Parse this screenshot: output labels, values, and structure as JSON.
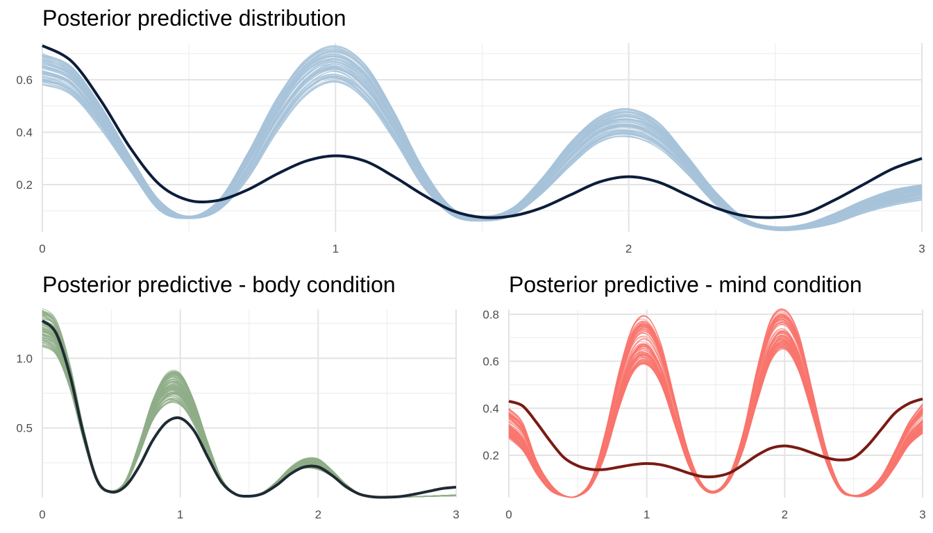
{
  "chart_data": [
    {
      "type": "line",
      "title": "Posterior predictive distribution",
      "xlabel": "",
      "ylabel": "",
      "xlim": [
        0,
        3
      ],
      "ylim": [
        0.02,
        0.74
      ],
      "x_ticks": [
        "0",
        "1",
        "2",
        "3"
      ],
      "y_ticks": [
        "0.2",
        "0.4",
        "0.6"
      ],
      "grid": true,
      "observed": {
        "color": "#0b1d3a",
        "x": [
          0,
          0.1,
          0.2,
          0.3,
          0.4,
          0.5,
          0.6,
          0.7,
          0.8,
          0.9,
          1.0,
          1.1,
          1.2,
          1.3,
          1.4,
          1.5,
          1.6,
          1.7,
          1.8,
          1.9,
          2.0,
          2.1,
          2.2,
          2.3,
          2.4,
          2.5,
          2.6,
          2.7,
          2.8,
          2.9,
          3.0
        ],
        "y": [
          0.73,
          0.67,
          0.52,
          0.34,
          0.2,
          0.14,
          0.14,
          0.18,
          0.24,
          0.29,
          0.31,
          0.29,
          0.23,
          0.16,
          0.1,
          0.075,
          0.08,
          0.11,
          0.16,
          0.21,
          0.23,
          0.21,
          0.16,
          0.11,
          0.08,
          0.075,
          0.09,
          0.14,
          0.2,
          0.26,
          0.3
        ]
      },
      "replicates": {
        "color": "#a7c3da",
        "count": 100,
        "x": [
          0,
          0.1,
          0.2,
          0.3,
          0.4,
          0.5,
          0.6,
          0.7,
          0.8,
          0.9,
          1.0,
          1.1,
          1.2,
          1.3,
          1.4,
          1.5,
          1.6,
          1.7,
          1.8,
          1.9,
          2.0,
          2.1,
          2.2,
          2.3,
          2.4,
          2.5,
          2.6,
          2.7,
          2.8,
          2.9,
          3.0
        ],
        "y_low": [
          0.58,
          0.54,
          0.41,
          0.25,
          0.1,
          0.07,
          0.1,
          0.22,
          0.4,
          0.54,
          0.59,
          0.52,
          0.37,
          0.19,
          0.08,
          0.06,
          0.08,
          0.16,
          0.27,
          0.36,
          0.38,
          0.34,
          0.24,
          0.12,
          0.05,
          0.025,
          0.03,
          0.05,
          0.09,
          0.12,
          0.14
        ],
        "y_high": [
          0.7,
          0.65,
          0.5,
          0.31,
          0.14,
          0.08,
          0.14,
          0.32,
          0.53,
          0.68,
          0.73,
          0.66,
          0.48,
          0.26,
          0.11,
          0.08,
          0.11,
          0.22,
          0.36,
          0.46,
          0.49,
          0.44,
          0.31,
          0.17,
          0.07,
          0.04,
          0.05,
          0.09,
          0.14,
          0.18,
          0.2
        ]
      }
    },
    {
      "type": "line",
      "title": "Posterior predictive - body condition",
      "xlabel": "",
      "ylabel": "",
      "xlim": [
        0,
        3
      ],
      "ylim": [
        0,
        1.35
      ],
      "x_ticks": [
        "0",
        "1",
        "2",
        "3"
      ],
      "y_ticks": [
        "0.5",
        "1.0"
      ],
      "grid": true,
      "observed": {
        "color": "#1f2b33",
        "x": [
          0,
          0.1,
          0.2,
          0.3,
          0.4,
          0.5,
          0.6,
          0.7,
          0.8,
          0.9,
          1.0,
          1.1,
          1.2,
          1.3,
          1.4,
          1.5,
          1.6,
          1.7,
          1.8,
          1.9,
          2.0,
          2.1,
          2.2,
          2.3,
          2.4,
          2.5,
          2.6,
          2.7,
          2.8,
          2.9,
          3.0
        ],
        "y": [
          1.27,
          1.18,
          0.88,
          0.45,
          0.12,
          0.04,
          0.08,
          0.22,
          0.41,
          0.54,
          0.57,
          0.48,
          0.29,
          0.11,
          0.025,
          0.01,
          0.03,
          0.09,
          0.17,
          0.22,
          0.22,
          0.16,
          0.08,
          0.025,
          0.005,
          0.003,
          0.008,
          0.025,
          0.045,
          0.065,
          0.075
        ]
      },
      "replicates": {
        "color": "#8fae88",
        "count": 100,
        "x": [
          0,
          0.1,
          0.2,
          0.3,
          0.4,
          0.5,
          0.6,
          0.7,
          0.8,
          0.9,
          1.0,
          1.1,
          1.2,
          1.3,
          1.4,
          1.5,
          1.6,
          1.7,
          1.8,
          1.9,
          2.0,
          2.1,
          2.2,
          2.3,
          2.4,
          2.5,
          2.6,
          2.7,
          2.8,
          2.9,
          3.0
        ],
        "y_low": [
          1.08,
          1.02,
          0.78,
          0.4,
          0.1,
          0.04,
          0.09,
          0.3,
          0.55,
          0.67,
          0.66,
          0.52,
          0.3,
          0.1,
          0.02,
          0.01,
          0.03,
          0.09,
          0.17,
          0.21,
          0.2,
          0.15,
          0.07,
          0.02,
          0.004,
          0.002,
          0.003,
          0.005,
          0.008,
          0.01,
          0.012
        ],
        "y_high": [
          1.36,
          1.28,
          0.96,
          0.5,
          0.13,
          0.05,
          0.12,
          0.39,
          0.7,
          0.89,
          0.9,
          0.7,
          0.4,
          0.14,
          0.03,
          0.01,
          0.04,
          0.12,
          0.22,
          0.28,
          0.28,
          0.2,
          0.1,
          0.03,
          0.006,
          0.003,
          0.005,
          0.008,
          0.012,
          0.016,
          0.02
        ]
      }
    },
    {
      "type": "line",
      "title": "Posterior predictive - mind condition",
      "xlabel": "",
      "ylabel": "",
      "xlim": [
        0,
        3
      ],
      "ylim": [
        0.02,
        0.82
      ],
      "x_ticks": [
        "0",
        "1",
        "2",
        "3"
      ],
      "y_ticks": [
        "0.2",
        "0.4",
        "0.6",
        "0.8"
      ],
      "grid": true,
      "observed": {
        "color": "#7a1a14",
        "x": [
          0,
          0.1,
          0.2,
          0.3,
          0.4,
          0.5,
          0.6,
          0.7,
          0.8,
          0.9,
          1.0,
          1.1,
          1.2,
          1.3,
          1.4,
          1.5,
          1.6,
          1.7,
          1.8,
          1.9,
          2.0,
          2.1,
          2.2,
          2.3,
          2.4,
          2.5,
          2.6,
          2.7,
          2.8,
          2.9,
          3.0
        ],
        "y": [
          0.43,
          0.41,
          0.34,
          0.26,
          0.19,
          0.155,
          0.14,
          0.14,
          0.15,
          0.16,
          0.165,
          0.16,
          0.145,
          0.125,
          0.11,
          0.11,
          0.125,
          0.16,
          0.2,
          0.23,
          0.24,
          0.23,
          0.21,
          0.19,
          0.18,
          0.19,
          0.24,
          0.31,
          0.38,
          0.42,
          0.44
        ]
      },
      "replicates": {
        "color": "#f8766d",
        "count": 100,
        "x": [
          0,
          0.1,
          0.2,
          0.3,
          0.4,
          0.5,
          0.6,
          0.7,
          0.8,
          0.9,
          1.0,
          1.1,
          1.2,
          1.3,
          1.4,
          1.5,
          1.6,
          1.7,
          1.8,
          1.9,
          2.0,
          2.1,
          2.2,
          2.3,
          2.4,
          2.5,
          2.6,
          2.7,
          2.8,
          2.9,
          3.0
        ],
        "y_low": [
          0.27,
          0.22,
          0.12,
          0.05,
          0.025,
          0.025,
          0.07,
          0.2,
          0.4,
          0.55,
          0.58,
          0.5,
          0.33,
          0.16,
          0.06,
          0.04,
          0.09,
          0.22,
          0.42,
          0.6,
          0.65,
          0.56,
          0.37,
          0.17,
          0.05,
          0.025,
          0.03,
          0.07,
          0.15,
          0.24,
          0.29
        ],
        "y_high": [
          0.4,
          0.34,
          0.18,
          0.08,
          0.03,
          0.03,
          0.1,
          0.3,
          0.56,
          0.75,
          0.79,
          0.68,
          0.45,
          0.22,
          0.08,
          0.05,
          0.12,
          0.3,
          0.57,
          0.78,
          0.82,
          0.72,
          0.48,
          0.23,
          0.07,
          0.03,
          0.05,
          0.11,
          0.22,
          0.34,
          0.42
        ]
      }
    }
  ]
}
